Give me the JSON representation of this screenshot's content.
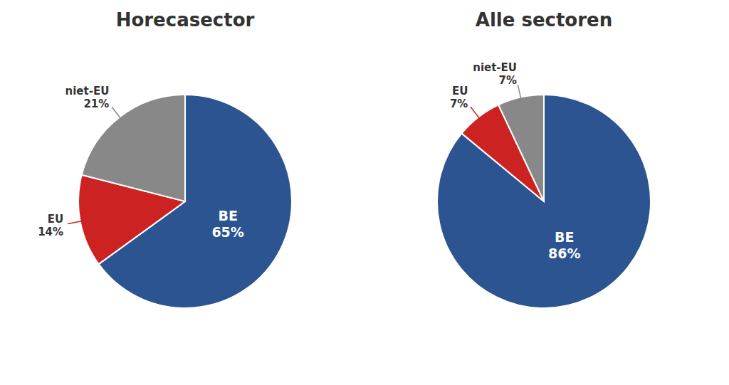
{
  "chart_data": [
    {
      "type": "pie",
      "title": "Horecasector",
      "categories": [
        "BE",
        "EU",
        "niet-EU"
      ],
      "values": [
        65,
        14,
        21
      ],
      "value_labels": [
        "65%",
        "14%",
        "21%"
      ],
      "colors": [
        "#2B5490",
        "#CC2222",
        "#888888"
      ],
      "data_labels": true
    },
    {
      "type": "pie",
      "title": "Alle sectoren",
      "categories": [
        "BE",
        "EU",
        "niet-EU"
      ],
      "values": [
        86,
        7,
        7
      ],
      "value_labels": [
        "86%",
        "7%",
        "7%"
      ],
      "colors": [
        "#2B5490",
        "#CC2222",
        "#888888"
      ],
      "data_labels": true
    }
  ]
}
